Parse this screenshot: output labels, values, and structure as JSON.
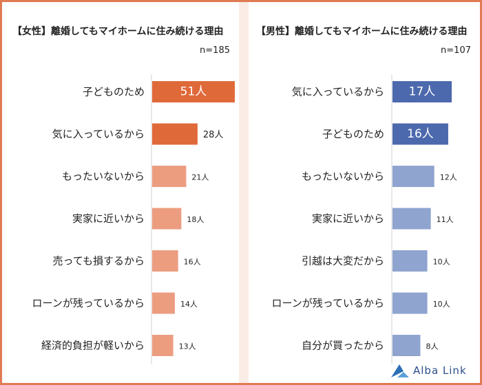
{
  "brand": {
    "logo_text": "Alba Link"
  },
  "chart_data": [
    {
      "type": "bar",
      "orientation": "horizontal",
      "title": "【女性】離婚してもマイホームに住み続ける理由",
      "note": "n=185",
      "categories": [
        "子どものため",
        "気に入っているから",
        "もったいないから",
        "実家に近いから",
        "売っても損するから",
        "ローンが残っているから",
        "経済的負担が軽いから"
      ],
      "values": [
        51,
        28,
        21,
        18,
        16,
        14,
        13
      ],
      "value_labels": [
        "51人",
        "28人",
        "21人",
        "18人",
        "16人",
        "14人",
        "13人"
      ],
      "highlight_count": 2,
      "xlim": [
        0,
        51
      ],
      "colors": {
        "highlight": "#e0693a",
        "normal": "#ec9d80"
      }
    },
    {
      "type": "bar",
      "orientation": "horizontal",
      "title": "【男性】離婚してもマイホームに住み続ける理由",
      "note": "n=107",
      "categories": [
        "気に入っているから",
        "子どものため",
        "もったいないから",
        "実家に近いから",
        "引越は大変だから",
        "ローンが残っているから",
        "自分が買ったから"
      ],
      "values": [
        17,
        16,
        12,
        11,
        10,
        10,
        8
      ],
      "value_labels": [
        "17人",
        "16人",
        "12人",
        "11人",
        "10人",
        "10人",
        "8人"
      ],
      "highlight_count": 2,
      "xlim": [
        0,
        17
      ],
      "colors": {
        "highlight": "#4d69ad",
        "normal": "#8fa4cf"
      }
    }
  ]
}
